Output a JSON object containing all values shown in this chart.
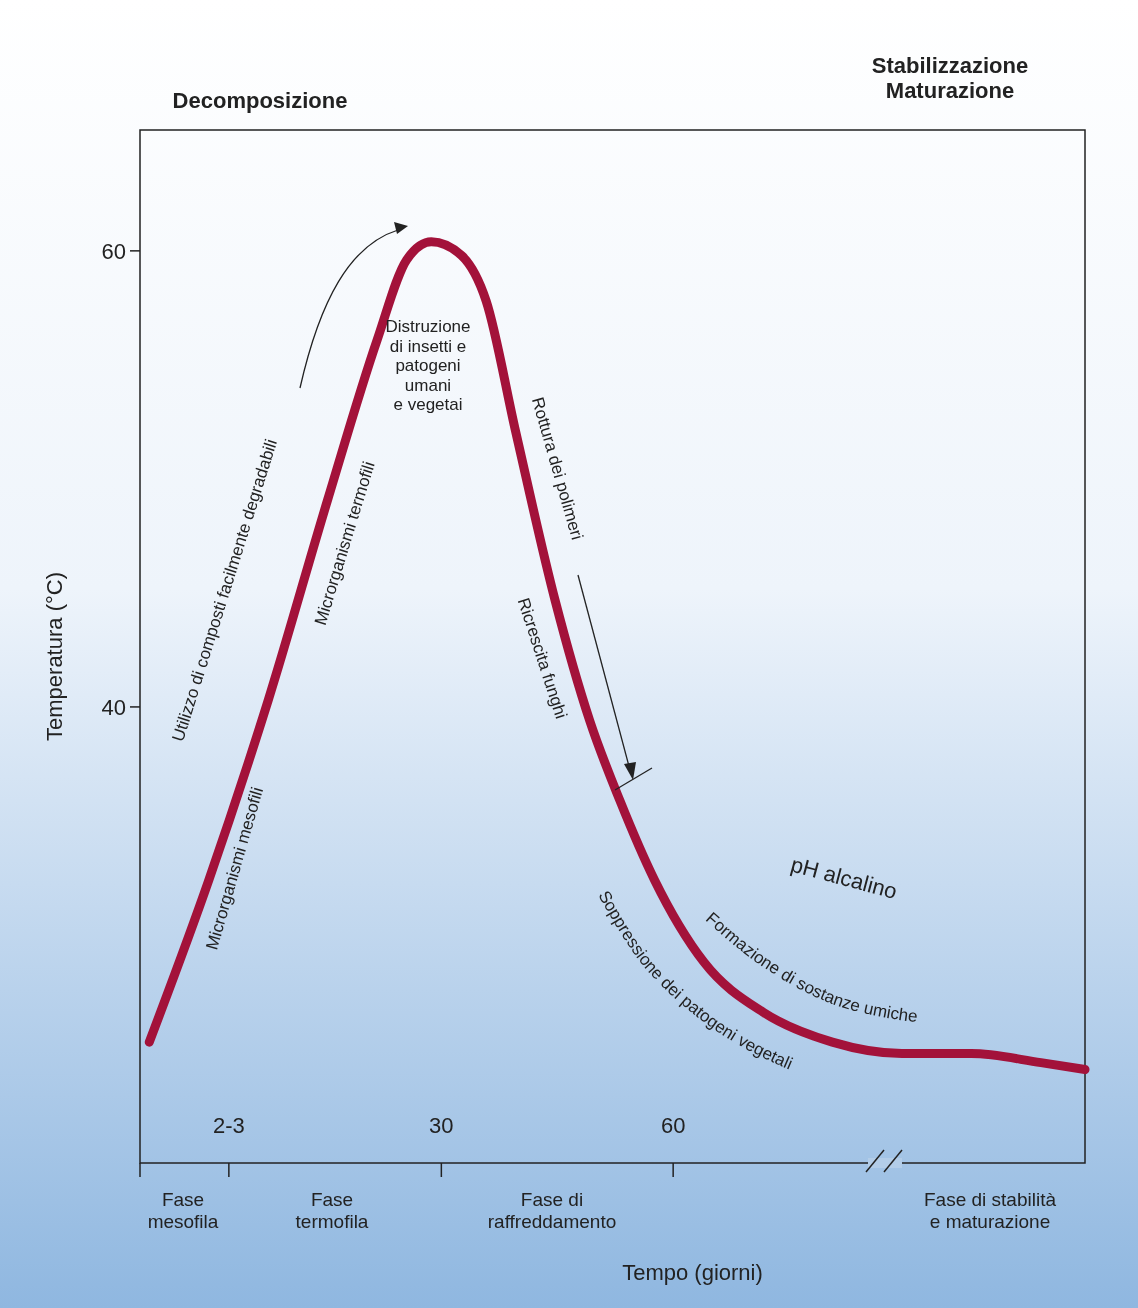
{
  "chart_data": {
    "type": "line",
    "xlabel": "Tempo (giorni)",
    "ylabel": "Temperatura (°C)",
    "x": [
      -7.8,
      -0.1,
      7.6,
      15.3,
      21.7,
      25.5,
      28.7,
      32.6,
      35.8,
      39.6,
      44.7,
      49.2,
      53.1,
      57.6,
      64.0,
      71.7,
      80.6,
      89.6,
      98.6,
      107.6,
      113.3
    ],
    "series": [
      {
        "color": "#a3123a",
        "values": [
          25.3,
          32.4,
          40.3,
          49.1,
          56.1,
          59.6,
          60.4,
          59.8,
          57.8,
          52.1,
          44.7,
          39.4,
          35.9,
          32.4,
          28.8,
          26.6,
          25.3,
          24.8,
          24.8,
          24.4,
          24.1
        ]
      }
    ],
    "xlim": [
      -9,
      113.3
    ],
    "xticks": [
      {
        "value": 2.5,
        "label": "2-3"
      },
      30,
      60
    ],
    "ylim": [
      20,
      65.3
    ],
    "yticks": [
      40,
      60
    ],
    "marker": "none",
    "line_style": "solid",
    "annotations": [
      "Decomposizione",
      "Stabilizzazione\nMaturazione",
      "Utilizzo di composti facilmente degradabili",
      "Microrganismi mesofili",
      "Microrganismi termofili",
      "Distruzione\ndi insetti e\npatogeni\numani\ne vegetai",
      "Rottura dei polimeri",
      "Ricrescita funghi",
      "pH alcalino",
      "Formazione di sostanze umiche",
      "Soppressione dei patogeni vegetali",
      "Fase\nmesofila",
      "Fase\ntermofila",
      "Fase di\nraffreddamento",
      "Fase di stabilità\ne maturazione"
    ]
  }
}
